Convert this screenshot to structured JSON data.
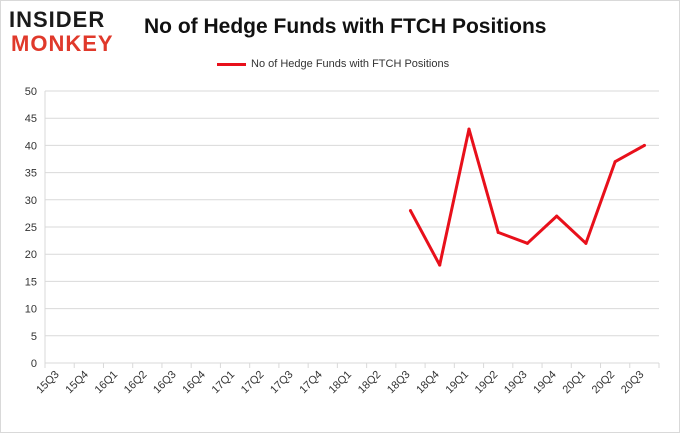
{
  "logo": {
    "line1": "INSIDER",
    "line2": "MONKEY"
  },
  "colors": {
    "series": "#e8101b",
    "grid": "#d9d9d9",
    "logo_accent": "#e0392b"
  },
  "chart_data": {
    "type": "line",
    "title": "No of Hedge Funds with FTCH Positions",
    "xlabel": "",
    "ylabel": "",
    "ylim": [
      0,
      50
    ],
    "yticks": [
      0,
      5,
      10,
      15,
      20,
      25,
      30,
      35,
      40,
      45,
      50
    ],
    "grid": true,
    "legend_position": "top-center",
    "categories": [
      "15Q3",
      "15Q4",
      "16Q1",
      "16Q2",
      "16Q3",
      "16Q4",
      "17Q1",
      "17Q2",
      "17Q3",
      "17Q4",
      "18Q1",
      "18Q2",
      "18Q3",
      "18Q4",
      "19Q1",
      "19Q2",
      "19Q3",
      "19Q4",
      "20Q1",
      "20Q2",
      "20Q3"
    ],
    "series": [
      {
        "name": "No of Hedge Funds with FTCH Positions",
        "values": [
          null,
          null,
          null,
          null,
          null,
          null,
          null,
          null,
          null,
          null,
          null,
          null,
          28,
          18,
          43,
          24,
          22,
          27,
          22,
          37,
          40
        ]
      }
    ]
  }
}
